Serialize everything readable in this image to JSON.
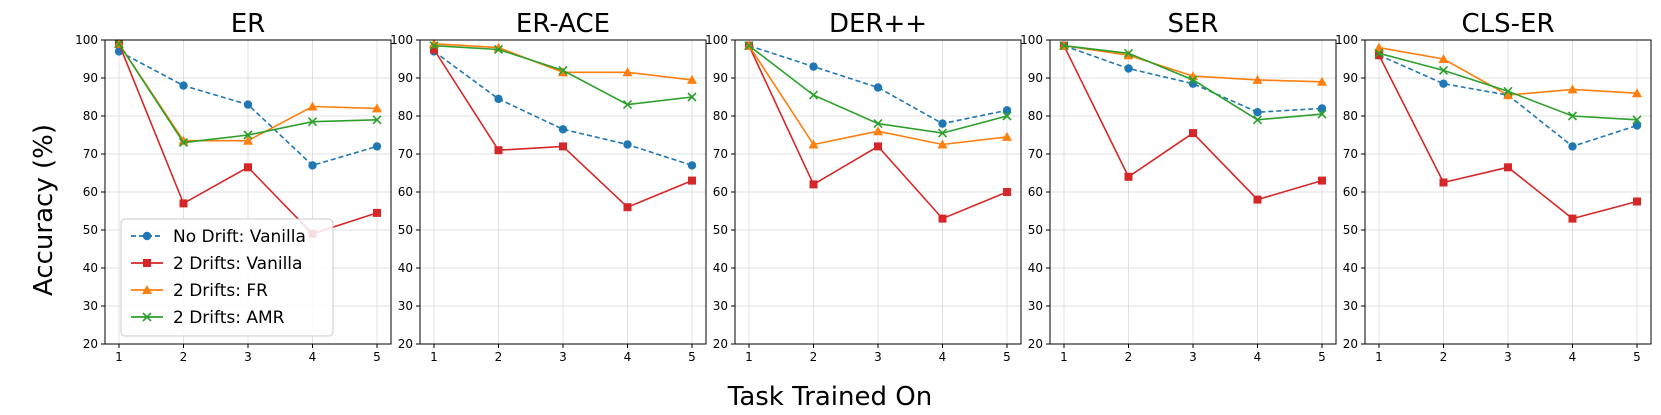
{
  "chart_data": {
    "type": "line",
    "ylabel": "Accuracy (%)",
    "xlabel": "Task Trained On",
    "ylim": [
      20,
      100
    ],
    "yticks": [
      20,
      30,
      40,
      50,
      60,
      70,
      80,
      90,
      100
    ],
    "x": [
      1,
      2,
      3,
      4,
      5
    ],
    "legend": {
      "location": "lower-left of first panel",
      "entries": [
        {
          "name": "No Drift: Vanilla",
          "color": "#1f77b4",
          "marker": "circle",
          "dashed": true
        },
        {
          "name": "2 Drifts: Vanilla",
          "color": "#d62728",
          "marker": "square",
          "dashed": false
        },
        {
          "name": "2 Drifts: FR",
          "color": "#ff7f0e",
          "marker": "triangle",
          "dashed": false
        },
        {
          "name": "2 Drifts: AMR",
          "color": "#2ca02c",
          "marker": "x",
          "dashed": false
        }
      ]
    },
    "panels": [
      {
        "title": "ER",
        "series": [
          {
            "name": "No Drift: Vanilla",
            "values": [
              97,
              88,
              83,
              67,
              72
            ]
          },
          {
            "name": "2 Drifts: Vanilla",
            "values": [
              99,
              57,
              66.5,
              49,
              54.5
            ]
          },
          {
            "name": "2 Drifts: FR",
            "values": [
              99,
              73.5,
              73.5,
              82.5,
              82
            ]
          },
          {
            "name": "2 Drifts: AMR",
            "values": [
              99,
              73,
              75,
              78.5,
              79
            ]
          }
        ]
      },
      {
        "title": "ER-ACE",
        "series": [
          {
            "name": "No Drift: Vanilla",
            "values": [
              97,
              84.5,
              76.5,
              72.5,
              67
            ]
          },
          {
            "name": "2 Drifts: Vanilla",
            "values": [
              97.5,
              71,
              72,
              56,
              63
            ]
          },
          {
            "name": "2 Drifts: FR",
            "values": [
              99,
              98,
              91.5,
              91.5,
              89.5
            ]
          },
          {
            "name": "2 Drifts: AMR",
            "values": [
              98.5,
              97.5,
              92,
              83,
              85
            ]
          }
        ]
      },
      {
        "title": "DER++",
        "series": [
          {
            "name": "No Drift: Vanilla",
            "values": [
              98.5,
              93,
              87.5,
              78,
              81.5
            ]
          },
          {
            "name": "2 Drifts: Vanilla",
            "values": [
              98.5,
              62,
              72,
              53,
              60
            ]
          },
          {
            "name": "2 Drifts: FR",
            "values": [
              98.5,
              72.5,
              76,
              72.5,
              74.5
            ]
          },
          {
            "name": "2 Drifts: AMR",
            "values": [
              98.5,
              85.5,
              78,
              75.5,
              80
            ]
          }
        ]
      },
      {
        "title": "SER",
        "series": [
          {
            "name": "No Drift: Vanilla",
            "values": [
              98.5,
              92.5,
              88.5,
              81,
              82
            ]
          },
          {
            "name": "2 Drifts: Vanilla",
            "values": [
              98.5,
              64,
              75.5,
              58,
              63
            ]
          },
          {
            "name": "2 Drifts: FR",
            "values": [
              98.5,
              96,
              90.5,
              89.5,
              89
            ]
          },
          {
            "name": "2 Drifts: AMR",
            "values": [
              98.5,
              96.5,
              89.5,
              79,
              80.5
            ]
          }
        ]
      },
      {
        "title": "CLS-ER",
        "series": [
          {
            "name": "No Drift: Vanilla",
            "values": [
              96,
              88.5,
              85.5,
              72,
              77.5
            ]
          },
          {
            "name": "2 Drifts: Vanilla",
            "values": [
              96,
              62.5,
              66.5,
              53,
              57.5
            ]
          },
          {
            "name": "2 Drifts: FR",
            "values": [
              98,
              95,
              85.5,
              87,
              86
            ]
          },
          {
            "name": "2 Drifts: AMR",
            "values": [
              96.5,
              92,
              86.5,
              80,
              79
            ]
          }
        ]
      }
    ]
  }
}
